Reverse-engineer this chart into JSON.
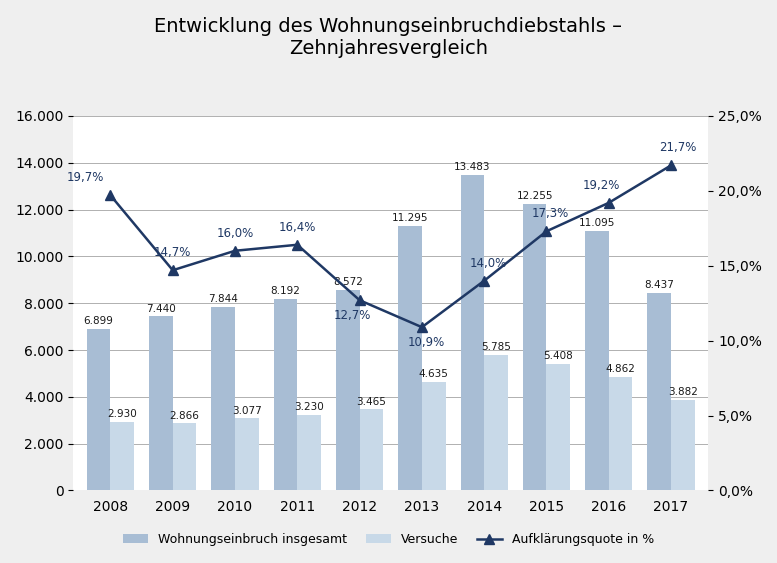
{
  "title": "Entwicklung des Wohnungseinbruchdiebstahls –\nZehnjahresvergleich",
  "years": [
    2008,
    2009,
    2010,
    2011,
    2012,
    2013,
    2014,
    2015,
    2016,
    2017
  ],
  "insgesamt": [
    6899,
    7440,
    7844,
    8192,
    8572,
    11295,
    13483,
    12255,
    11095,
    8437
  ],
  "versuche": [
    2930,
    2866,
    3077,
    3230,
    3465,
    4635,
    5785,
    5408,
    4862,
    3882
  ],
  "aufklaerung": [
    19.7,
    14.7,
    16.0,
    16.4,
    12.7,
    10.9,
    14.0,
    17.3,
    19.2,
    21.7
  ],
  "bar_color_insgesamt": "#a8bdd4",
  "bar_color_versuche": "#c8d9e8",
  "line_color": "#1f3864",
  "marker_style": "^",
  "legend_labels": [
    "Wohnungseinbruch insgesamt",
    "Versuche",
    "Aufklärungsquote in %"
  ],
  "ylim_left": [
    0,
    16000
  ],
  "ylim_right": [
    0,
    25.0
  ],
  "yticks_left": [
    0,
    2000,
    4000,
    6000,
    8000,
    10000,
    12000,
    14000,
    16000
  ],
  "yticks_right": [
    0.0,
    5.0,
    10.0,
    15.0,
    20.0,
    25.0
  ],
  "background_color": "#efefef",
  "plot_background": "#ffffff",
  "title_fontsize": 14,
  "tick_fontsize": 10,
  "label_fontsize": 9,
  "bar_width": 0.38,
  "line_offsets_pts": [
    [
      -18,
      8
    ],
    [
      0,
      8
    ],
    [
      0,
      8
    ],
    [
      0,
      8
    ],
    [
      -5,
      -16
    ],
    [
      3,
      -16
    ],
    [
      3,
      8
    ],
    [
      3,
      8
    ],
    [
      -5,
      8
    ],
    [
      5,
      8
    ]
  ]
}
